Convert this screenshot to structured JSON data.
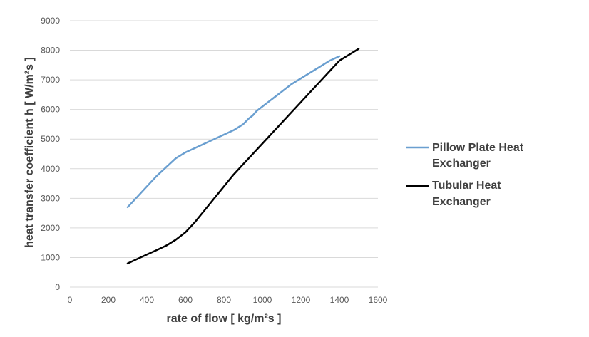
{
  "chart_data": {
    "type": "line",
    "xlabel": "rate of flow [ kg/m²s ]",
    "ylabel": "heat transfer coefficient h [ W/m²s ]",
    "xlim": [
      0,
      1600
    ],
    "ylim": [
      0,
      9000
    ],
    "xticks": [
      0,
      200,
      400,
      600,
      800,
      1000,
      1200,
      1400,
      1600
    ],
    "yticks": [
      0,
      1000,
      2000,
      3000,
      4000,
      5000,
      6000,
      7000,
      8000,
      9000
    ],
    "grid": "horizontal",
    "legend": "right",
    "series": [
      {
        "name": "Pillow Plate Heat Exchanger",
        "color": "#6a9fd0",
        "x": [
          300,
          350,
          400,
          450,
          500,
          550,
          600,
          650,
          700,
          750,
          800,
          850,
          900,
          930,
          950,
          970,
          1000,
          1050,
          1100,
          1150,
          1200,
          1250,
          1300,
          1350,
          1400
        ],
        "y": [
          2700,
          3050,
          3400,
          3750,
          4050,
          4350,
          4550,
          4700,
          4850,
          5000,
          5150,
          5300,
          5500,
          5700,
          5800,
          5950,
          6100,
          6350,
          6600,
          6850,
          7050,
          7250,
          7450,
          7650,
          7800
        ]
      },
      {
        "name": "Tubular Heat Exchanger",
        "color": "#000000",
        "x": [
          300,
          350,
          400,
          450,
          500,
          550,
          600,
          650,
          700,
          750,
          800,
          850,
          900,
          950,
          1000,
          1050,
          1100,
          1150,
          1200,
          1250,
          1300,
          1350,
          1400,
          1450,
          1500
        ],
        "y": [
          800,
          950,
          1100,
          1250,
          1400,
          1600,
          1850,
          2200,
          2600,
          3000,
          3400,
          3800,
          4150,
          4500,
          4850,
          5200,
          5550,
          5900,
          6250,
          6600,
          6950,
          7300,
          7650,
          7850,
          8050
        ]
      }
    ]
  }
}
